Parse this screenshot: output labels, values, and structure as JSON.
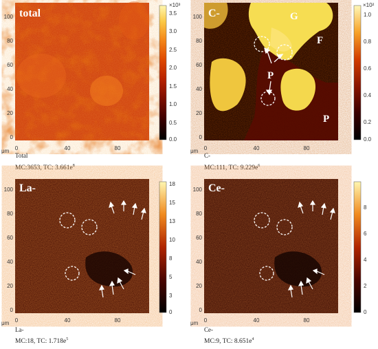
{
  "panels": [
    {
      "tag": "total",
      "caption": "Total",
      "stats": "MC:3653, TC: 3.661e",
      "stats_exp": "8",
      "scale_exp": "×10³",
      "scale_ticks": [
        "3.5",
        "3.0",
        "2.5",
        "2.0",
        "1.5",
        "1.0",
        "0.5",
        "0.0"
      ],
      "x_ticks": [
        "0",
        "40",
        "80"
      ],
      "y_ticks": [
        "100",
        "80",
        "60",
        "40",
        "20",
        "0"
      ],
      "unit": "μm"
    },
    {
      "tag": "C-",
      "caption": "C-",
      "stats": "MC:111, TC: 9.229e",
      "stats_exp": "6",
      "scale_exp": "×10²",
      "scale_ticks": [
        "1.0",
        "0.8",
        "0.6",
        "0.4",
        "0.2",
        "0.0"
      ],
      "x_ticks": [
        "0",
        "40",
        "80"
      ],
      "y_ticks": [
        "100",
        "80",
        "60",
        "40",
        "20",
        "0"
      ],
      "unit": "μm",
      "region_labels": [
        "G",
        "F",
        "P",
        "P"
      ]
    },
    {
      "tag": "La-",
      "caption": "La-",
      "stats": "MC:18, TC: 1.718e",
      "stats_exp": "5",
      "scale_ticks": [
        "18",
        "15",
        "13",
        "10",
        "8",
        "5",
        "3",
        "0"
      ],
      "x_ticks": [
        "0",
        "40",
        "80"
      ],
      "y_ticks": [
        "100",
        "80",
        "60",
        "40",
        "20",
        "0"
      ],
      "unit": "μm"
    },
    {
      "tag": "Ce-",
      "caption": "Ce-",
      "stats": "MC:9, TC: 8.651e",
      "stats_exp": "4",
      "scale_ticks": [
        "8",
        "6",
        "4",
        "2",
        "0"
      ],
      "x_ticks": [
        "0",
        "40",
        "80"
      ],
      "y_ticks": [
        "100",
        "80",
        "60",
        "40",
        "20",
        "0"
      ],
      "unit": "μm"
    }
  ],
  "colors": {
    "colormap": [
      "#000000",
      "#3a0000",
      "#7a0d00",
      "#b82200",
      "#e04a00",
      "#f58a1a",
      "#fbc845",
      "#fff7b0"
    ],
    "annotation": "#ffffff"
  }
}
